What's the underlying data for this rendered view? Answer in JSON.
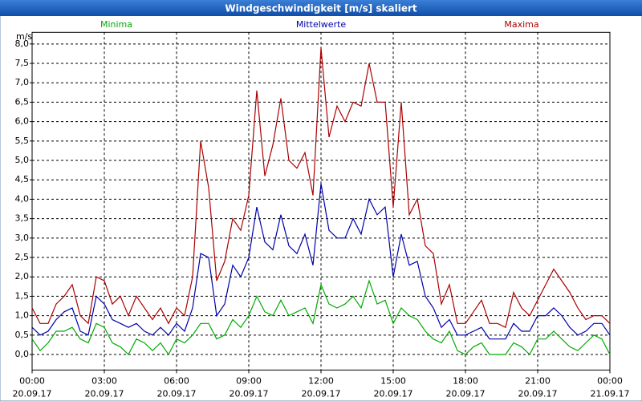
{
  "chart_data": {
    "type": "line",
    "title": "Windgeschwindigkeit [m/s] skaliert",
    "y_label": "m/s",
    "x": [
      0,
      20,
      40,
      60,
      80,
      100,
      120,
      140,
      160,
      180,
      200,
      220,
      240,
      260,
      280,
      300,
      320,
      340,
      360,
      380,
      400,
      420,
      440,
      460,
      480,
      500,
      520,
      540,
      560,
      580,
      600,
      620,
      640,
      660,
      680,
      700,
      720,
      740,
      760,
      780,
      800,
      820,
      840,
      860,
      880,
      900,
      920,
      940,
      960,
      980,
      1000,
      1020,
      1040,
      1060,
      1080,
      1100,
      1120,
      1140,
      1160,
      1180,
      1200,
      1220,
      1240,
      1260,
      1280,
      1300,
      1320,
      1340,
      1360,
      1380,
      1400,
      1420,
      1440
    ],
    "series": [
      {
        "name": "Minima",
        "color": "#00aa00",
        "values": [
          0.4,
          0.1,
          0.3,
          0.6,
          0.6,
          0.7,
          0.4,
          0.3,
          0.8,
          0.7,
          0.3,
          0.2,
          0.0,
          0.4,
          0.3,
          0.1,
          0.3,
          0.0,
          0.4,
          0.3,
          0.5,
          0.8,
          0.8,
          0.4,
          0.5,
          0.9,
          0.7,
          1.0,
          1.5,
          1.1,
          1.0,
          1.4,
          1.0,
          1.1,
          1.2,
          0.8,
          1.8,
          1.3,
          1.2,
          1.3,
          1.5,
          1.2,
          1.9,
          1.3,
          1.4,
          0.8,
          1.2,
          1.0,
          0.9,
          0.6,
          0.4,
          0.3,
          0.6,
          0.1,
          0.0,
          0.2,
          0.3,
          0.0,
          0.0,
          0.0,
          0.3,
          0.2,
          0.0,
          0.4,
          0.4,
          0.6,
          0.4,
          0.2,
          0.1,
          0.3,
          0.5,
          0.4,
          0.0
        ]
      },
      {
        "name": "Mittelwerte",
        "color": "#0000aa",
        "values": [
          0.7,
          0.5,
          0.6,
          0.9,
          1.1,
          1.2,
          0.6,
          0.5,
          1.5,
          1.3,
          0.9,
          0.8,
          0.7,
          0.8,
          0.6,
          0.5,
          0.7,
          0.5,
          0.8,
          0.6,
          1.2,
          2.6,
          2.5,
          1.0,
          1.3,
          2.3,
          2.0,
          2.5,
          3.8,
          2.9,
          2.7,
          3.6,
          2.8,
          2.6,
          3.1,
          2.3,
          4.4,
          3.2,
          3.0,
          3.0,
          3.5,
          3.1,
          4.0,
          3.6,
          3.8,
          2.0,
          3.1,
          2.3,
          2.4,
          1.5,
          1.2,
          0.7,
          0.9,
          0.5,
          0.5,
          0.6,
          0.7,
          0.4,
          0.4,
          0.4,
          0.8,
          0.6,
          0.6,
          1.0,
          1.0,
          1.2,
          1.0,
          0.7,
          0.5,
          0.6,
          0.8,
          0.8,
          0.5
        ]
      },
      {
        "name": "Maxima",
        "color": "#aa0000",
        "values": [
          1.2,
          0.8,
          0.8,
          1.3,
          1.5,
          1.8,
          1.0,
          0.8,
          2.0,
          1.9,
          1.3,
          1.5,
          1.0,
          1.5,
          1.2,
          0.9,
          1.2,
          0.8,
          1.2,
          1.0,
          2.0,
          5.5,
          4.3,
          1.9,
          2.4,
          3.5,
          3.2,
          4.1,
          6.8,
          4.6,
          5.4,
          6.6,
          5.0,
          4.8,
          5.2,
          4.1,
          7.9,
          5.6,
          6.4,
          6.0,
          6.5,
          6.4,
          7.5,
          6.5,
          6.5,
          3.8,
          6.5,
          3.6,
          4.0,
          2.8,
          2.6,
          1.3,
          1.8,
          0.8,
          0.8,
          1.1,
          1.4,
          0.8,
          0.8,
          0.7,
          1.6,
          1.2,
          1.0,
          1.4,
          1.8,
          2.2,
          1.9,
          1.6,
          1.2,
          0.9,
          1.0,
          1.0,
          0.8
        ]
      }
    ],
    "xlim": [
      0,
      1440
    ],
    "xticks": [
      {
        "value": 0,
        "label": [
          "00:00",
          "20.09.17"
        ]
      },
      {
        "value": 180,
        "label": [
          "03:00",
          "20.09.17"
        ]
      },
      {
        "value": 360,
        "label": [
          "06:00",
          "20.09.17"
        ]
      },
      {
        "value": 540,
        "label": [
          "09:00",
          "20.09.17"
        ]
      },
      {
        "value": 720,
        "label": [
          "12:00",
          "20.09.17"
        ]
      },
      {
        "value": 900,
        "label": [
          "15:00",
          "20.09.17"
        ]
      },
      {
        "value": 1080,
        "label": [
          "18:00",
          "20.09.17"
        ]
      },
      {
        "value": 1260,
        "label": [
          "21:00",
          "20.09.17"
        ]
      },
      {
        "value": 1440,
        "label": [
          "00:00",
          "21.09.17"
        ]
      }
    ],
    "ylim": [
      -0.4,
      8.3
    ],
    "yticks": [
      {
        "value": 0,
        "label": "0,0"
      },
      {
        "value": 0.5,
        "label": "0,5"
      },
      {
        "value": 1,
        "label": "1,0"
      },
      {
        "value": 1.5,
        "label": "1,5"
      },
      {
        "value": 2,
        "label": "2,0"
      },
      {
        "value": 2.5,
        "label": "2,5"
      },
      {
        "value": 3,
        "label": "3,0"
      },
      {
        "value": 3.5,
        "label": "3,5"
      },
      {
        "value": 4,
        "label": "4,0"
      },
      {
        "value": 4.5,
        "label": "4,5"
      },
      {
        "value": 5,
        "label": "5,0"
      },
      {
        "value": 5.5,
        "label": "5,5"
      },
      {
        "value": 6,
        "label": "6,0"
      },
      {
        "value": 6.5,
        "label": "6,5"
      },
      {
        "value": 7,
        "label": "7,0"
      },
      {
        "value": 7.5,
        "label": "7,5"
      },
      {
        "value": 8,
        "label": "8,0"
      }
    ],
    "grid": true
  }
}
